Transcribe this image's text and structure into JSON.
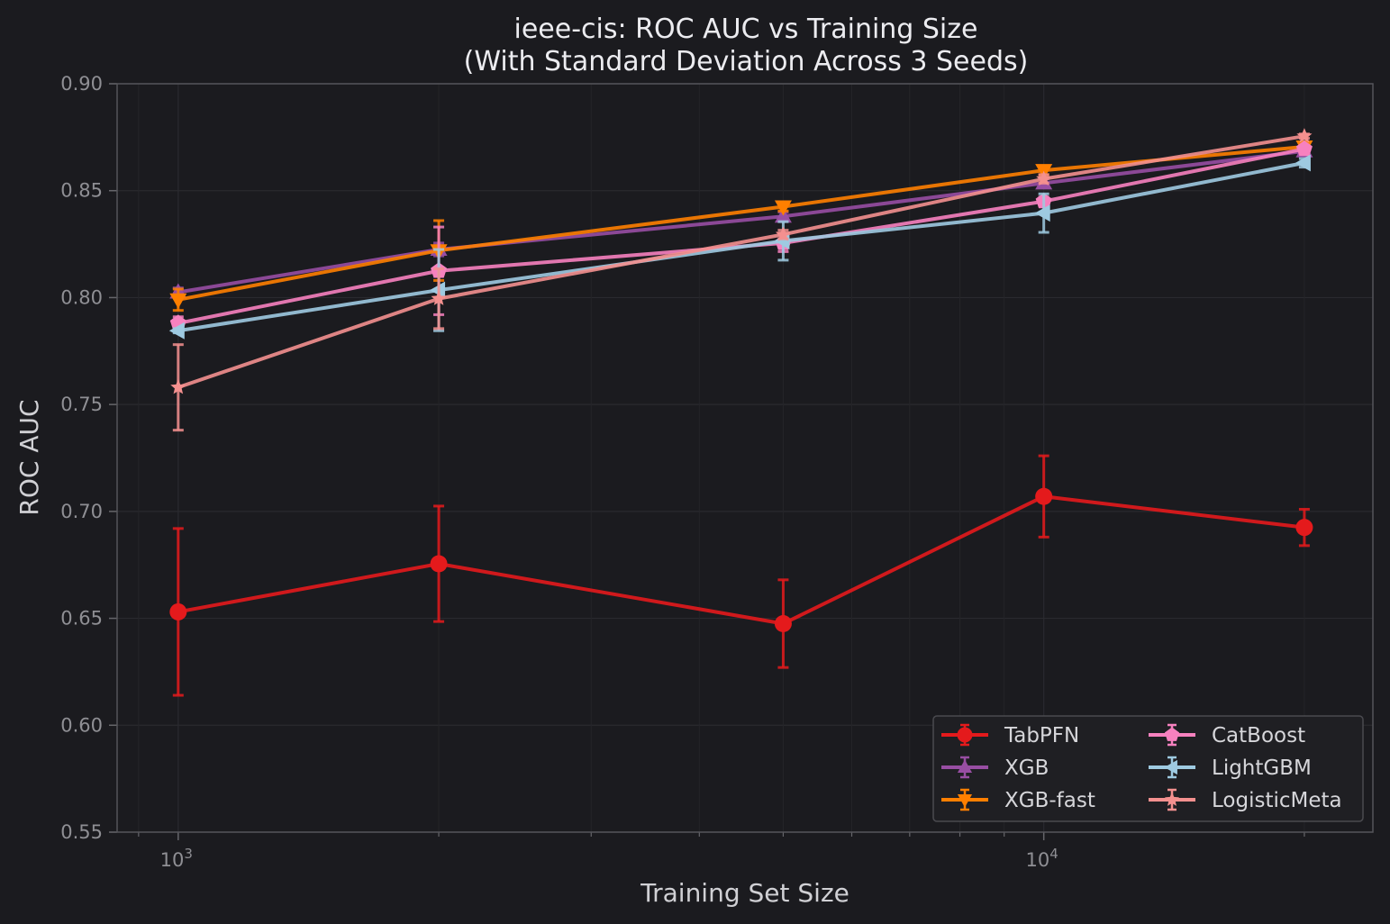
{
  "chart_data": {
    "type": "line",
    "title_line1": "ieee-cis: ROC AUC vs Training Size",
    "title_line2": "(With Standard Deviation Across 3 Seeds)",
    "xlabel": "Training Set Size",
    "ylabel": "ROC AUC",
    "x_scale": "log",
    "xlim": [
      850,
      24000
    ],
    "ylim": [
      0.55,
      0.9
    ],
    "grid": true,
    "legend_placement": "lower-right",
    "legend_columns": 2,
    "y_ticks": [
      {
        "value": 0.55,
        "label": "0.55"
      },
      {
        "value": 0.6,
        "label": "0.60"
      },
      {
        "value": 0.65,
        "label": "0.65"
      },
      {
        "value": 0.7,
        "label": "0.70"
      },
      {
        "value": 0.75,
        "label": "0.75"
      },
      {
        "value": 0.8,
        "label": "0.80"
      },
      {
        "value": 0.85,
        "label": "0.85"
      },
      {
        "value": 0.9,
        "label": "0.90"
      }
    ],
    "x_major_ticks": [
      {
        "value": 1000,
        "base": "10",
        "exp": "3"
      },
      {
        "value": 10000,
        "base": "10",
        "exp": "4"
      }
    ],
    "x_minor_ticks": [
      900,
      2000,
      3000,
      4000,
      5000,
      6000,
      7000,
      8000,
      9000,
      20000
    ],
    "x": [
      1000,
      2000,
      5000,
      10000,
      20000
    ],
    "series": [
      {
        "name": "TabPFN",
        "color": "#e41a1c",
        "marker": "circle",
        "values": [
          0.653,
          0.6755,
          0.6475,
          0.707,
          0.6925
        ],
        "errors": [
          0.039,
          0.027,
          0.0205,
          0.019,
          0.0085
        ]
      },
      {
        "name": "XGB",
        "color": "#984ea3",
        "marker": "triangle-up",
        "values": [
          0.8025,
          0.8225,
          0.838,
          0.8535,
          0.8685
        ],
        "errors": [
          0.002,
          0.003,
          0.002,
          0.002,
          0.001
        ]
      },
      {
        "name": "XGB-fast",
        "color": "#ff7f00",
        "marker": "triangle-down",
        "values": [
          0.799,
          0.822,
          0.8425,
          0.8595,
          0.8705
        ],
        "errors": [
          0.005,
          0.014,
          0.002,
          0.002,
          0.001
        ]
      },
      {
        "name": "CatBoost",
        "color": "#f781bf",
        "marker": "pentagon",
        "values": [
          0.788,
          0.8125,
          0.8255,
          0.845,
          0.8695
        ],
        "errors": [
          0.003,
          0.0205,
          0.004,
          0.002,
          0.001
        ]
      },
      {
        "name": "LightGBM",
        "color": "#9ecae1",
        "marker": "triangle-left",
        "values": [
          0.7845,
          0.8035,
          0.8265,
          0.8395,
          0.863
        ],
        "errors": [
          0.001,
          0.019,
          0.009,
          0.009,
          0.002
        ]
      },
      {
        "name": "LogisticMeta",
        "color": "#f4908f",
        "marker": "star",
        "values": [
          0.758,
          0.7995,
          0.8295,
          0.8555,
          0.8755
        ],
        "errors": [
          0.02,
          0.014,
          0.002,
          0.002,
          0.001
        ]
      }
    ]
  }
}
